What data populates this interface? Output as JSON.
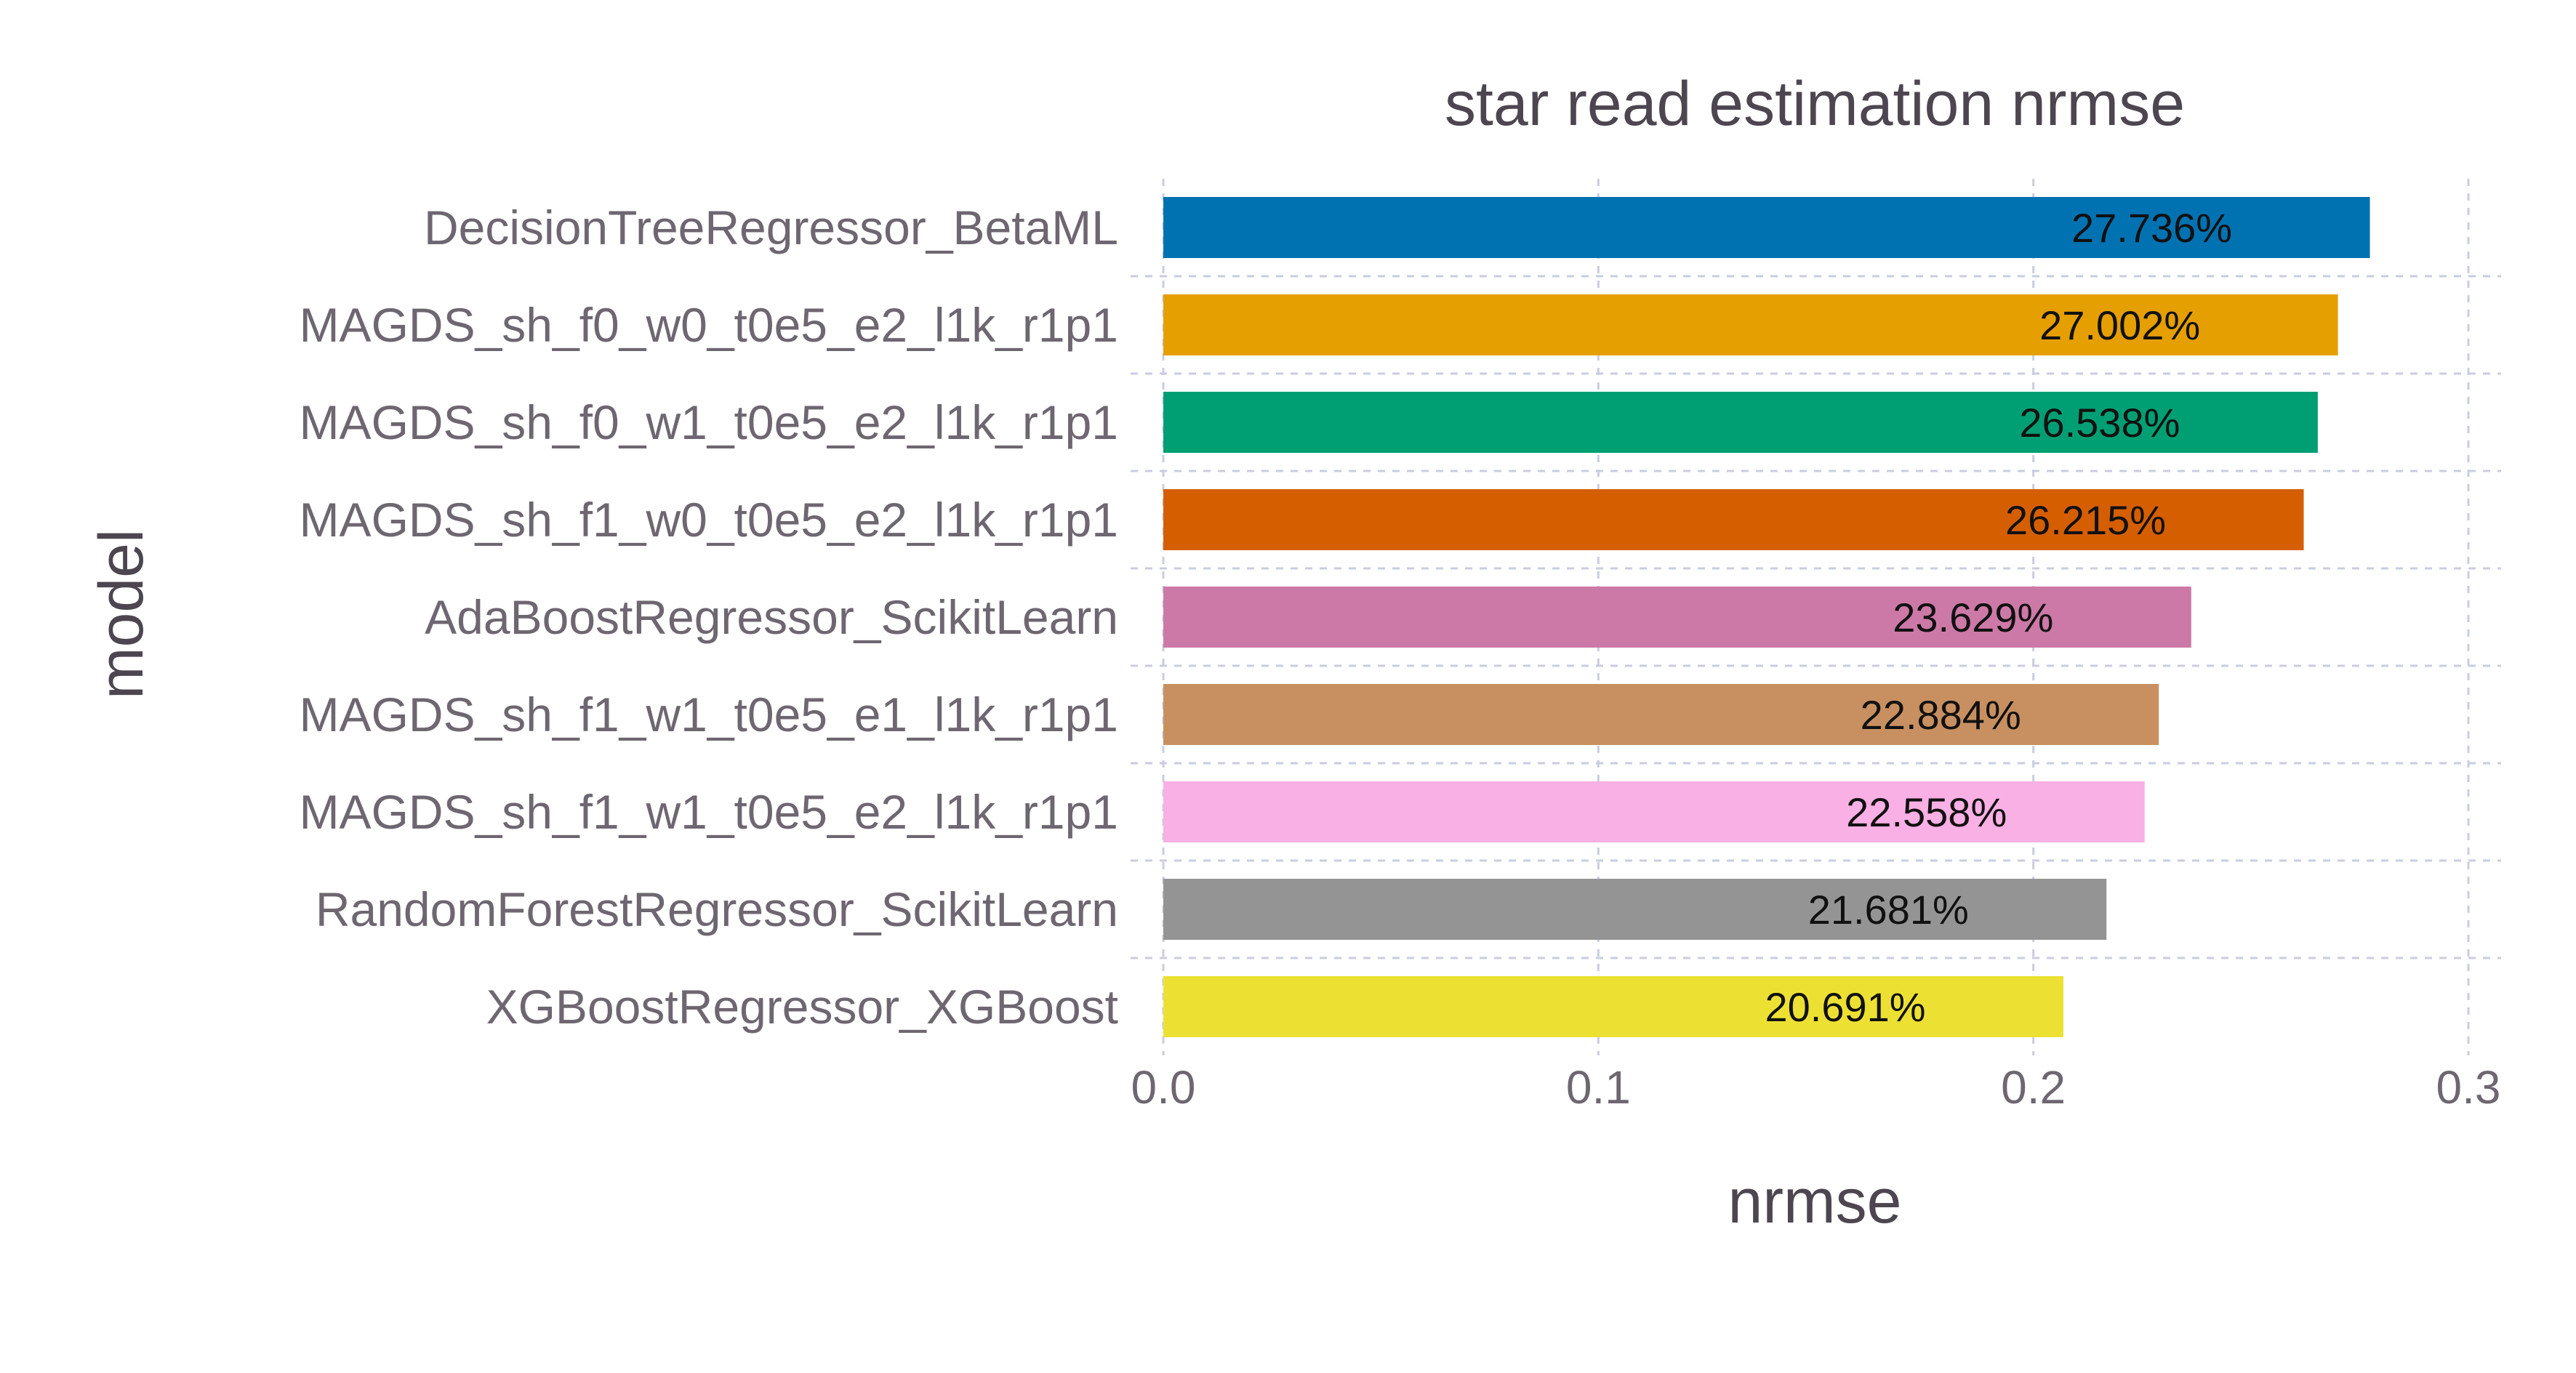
{
  "chart_data": {
    "type": "bar",
    "orientation": "horizontal",
    "title": "star read estimation nrmse",
    "xlabel": "nrmse",
    "ylabel": "model",
    "xlim": [
      0,
      0.3
    ],
    "xticks": [
      {
        "value": 0.0,
        "label": "0.0"
      },
      {
        "value": 0.1,
        "label": "0.1"
      },
      {
        "value": 0.2,
        "label": "0.2"
      },
      {
        "value": 0.3,
        "label": "0.3"
      }
    ],
    "grid": true,
    "legend": "none",
    "bars": [
      {
        "category": "DecisionTreeRegressor_BetaML",
        "value": 0.27736,
        "label": "27.736%",
        "color": "#0072B2"
      },
      {
        "category": "MAGDS_sh_f0_w0_t0e5_e2_l1k_r1p1",
        "value": 0.27002,
        "label": "27.002%",
        "color": "#E69F00"
      },
      {
        "category": "MAGDS_sh_f0_w1_t0e5_e2_l1k_r1p1",
        "value": 0.26538,
        "label": "26.538%",
        "color": "#009E73"
      },
      {
        "category": "MAGDS_sh_f1_w0_t0e5_e2_l1k_r1p1",
        "value": 0.26215,
        "label": "26.215%",
        "color": "#D55E00"
      },
      {
        "category": "AdaBoostRegressor_ScikitLearn",
        "value": 0.23629,
        "label": "23.629%",
        "color": "#CC79A7"
      },
      {
        "category": "MAGDS_sh_f1_w1_t0e5_e1_l1k_r1p1",
        "value": 0.22884,
        "label": "22.884%",
        "color": "#C89060"
      },
      {
        "category": "MAGDS_sh_f1_w1_t0e5_e2_l1k_r1p1",
        "value": 0.22558,
        "label": "22.558%",
        "color": "#F9B0E4"
      },
      {
        "category": "RandomForestRegressor_ScikitLearn",
        "value": 0.21681,
        "label": "21.681%",
        "color": "#949494"
      },
      {
        "category": "XGBoostRegressor_XGBoost",
        "value": 0.20691,
        "label": "20.691%",
        "color": "#ECE133"
      }
    ]
  }
}
